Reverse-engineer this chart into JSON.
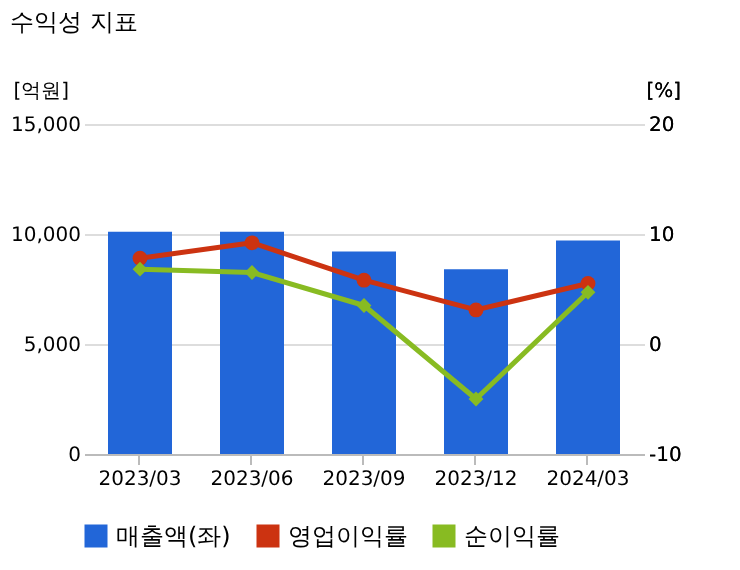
{
  "chart_data": {
    "type": "bar",
    "title": "수익성 지표",
    "ylabel": "[억원]",
    "y2label": "[%]",
    "categories": [
      "2023/03",
      "2023/06",
      "2023/09",
      "2023/12",
      "2024/03"
    ],
    "series": [
      {
        "name": "매출액(좌)",
        "color": "#2266d8",
        "values": [
          10100,
          10100,
          9200,
          8400,
          9700
        ]
      },
      {
        "name": "영업이익률",
        "type": "line",
        "axis": "y2",
        "marker": "circle",
        "color": "#cc3311",
        "values": [
          7.8,
          9.2,
          5.8,
          3.1,
          5.5
        ]
      },
      {
        "name": "순이익률",
        "type": "line",
        "axis": "y2",
        "marker": "diamond",
        "color": "#88bb22",
        "values": [
          6.8,
          6.5,
          3.5,
          -5.0,
          4.7
        ]
      }
    ],
    "ylim": [
      0,
      15000
    ],
    "yticks": [
      0,
      {
        "value": 5000,
        "label": "5,000"
      },
      {
        "value": 10000,
        "label": "10,000"
      },
      {
        "value": 15000,
        "label": "15,000"
      }
    ],
    "y2lim": [
      -10,
      20
    ],
    "y2ticks": [
      -10,
      0,
      10,
      20
    ],
    "grid": "y",
    "legend": "bottom"
  }
}
